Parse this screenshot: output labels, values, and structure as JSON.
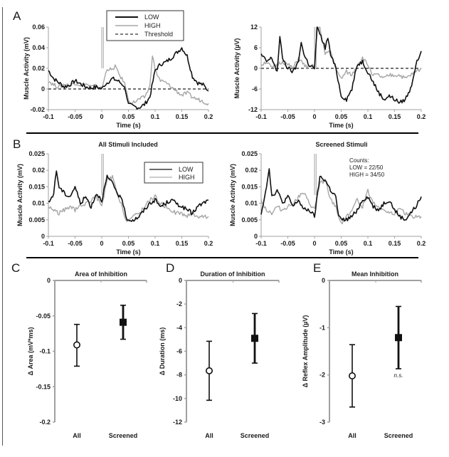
{
  "colors": {
    "low": "#111111",
    "high": "#a6a6a6",
    "axis": "#a0a0a0",
    "frame": "#000000"
  },
  "chart_data": [
    {
      "id": "A-left",
      "panel_letter": "A",
      "type": "line",
      "title": "",
      "xlabel": "Time (s)",
      "ylabel": "Muscle Activity (mV)",
      "xlim": [
        -0.1,
        0.2
      ],
      "ylim": [
        -0.02,
        0.06
      ],
      "xticks": [
        -0.1,
        -0.05,
        0,
        0.05,
        0.1,
        0.15,
        0.2
      ],
      "xtick_labels": [
        "-0.1",
        "-0.05",
        "0",
        "0.05",
        "0.1",
        "0.15",
        "0.2"
      ],
      "yticks": [
        -0.02,
        0,
        0.02,
        0.04,
        0.06
      ],
      "ytick_labels": [
        "-0.02",
        "0",
        "0.02",
        "0.04",
        "0.06"
      ],
      "legend": {
        "position": "top-center",
        "entries": [
          "LOW",
          "HIGH",
          "Threshold"
        ]
      },
      "threshold": 0,
      "series": [
        {
          "name": "LOW",
          "x": [
            -0.1,
            -0.09,
            -0.08,
            -0.07,
            -0.06,
            -0.05,
            -0.04,
            -0.03,
            -0.02,
            -0.01,
            0,
            0.005,
            0.01,
            0.02,
            0.03,
            0.04,
            0.045,
            0.05,
            0.06,
            0.07,
            0.08,
            0.09,
            0.1,
            0.11,
            0.12,
            0.13,
            0.14,
            0.15,
            0.16,
            0.17,
            0.18,
            0.19,
            0.2
          ],
          "y": [
            0.018,
            0.01,
            0.006,
            0.002,
            0.004,
            0.008,
            0.005,
            0.002,
            0.001,
            0.002,
            0.0,
            0.004,
            0.006,
            0.01,
            0.008,
            0.004,
            -0.002,
            -0.015,
            -0.017,
            -0.018,
            -0.015,
            -0.008,
            0.018,
            0.024,
            0.026,
            0.03,
            0.035,
            0.04,
            0.032,
            0.012,
            0.006,
            0.004,
            -0.002
          ]
        },
        {
          "name": "HIGH",
          "x": [
            -0.1,
            -0.09,
            -0.08,
            -0.07,
            -0.06,
            -0.05,
            -0.04,
            -0.03,
            -0.02,
            -0.01,
            0,
            0.005,
            0.01,
            0.02,
            0.025,
            0.03,
            0.04,
            0.045,
            0.05,
            0.06,
            0.07,
            0.08,
            0.09,
            0.095,
            0.1,
            0.11,
            0.12,
            0.13,
            0.14,
            0.15,
            0.16,
            0.17,
            0.18,
            0.19,
            0.2
          ],
          "y": [
            0.008,
            0.004,
            0.002,
            0.005,
            0.003,
            0.006,
            0.004,
            0.005,
            0.002,
            0.003,
            0.0,
            0.01,
            0.02,
            0.018,
            0.023,
            0.016,
            0.008,
            0.002,
            -0.012,
            -0.013,
            -0.01,
            -0.008,
            0.002,
            0.034,
            0.018,
            0.008,
            0.006,
            0.002,
            -0.002,
            -0.006,
            -0.004,
            -0.008,
            -0.01,
            -0.012,
            -0.014
          ]
        }
      ]
    },
    {
      "id": "A-right",
      "panel_letter": "",
      "type": "line",
      "title": "",
      "xlabel": "Time (s)",
      "ylabel": "Muscle Activity (µV)",
      "xlim": [
        -0.1,
        0.2
      ],
      "ylim": [
        -12,
        12
      ],
      "xticks": [
        -0.1,
        -0.05,
        0,
        0.05,
        0.1,
        0.15,
        0.2
      ],
      "xtick_labels": [
        "-0.1",
        "-0.05",
        "0",
        "0.05",
        "0.1",
        "0.15",
        "0.2"
      ],
      "yticks": [
        -12,
        -6,
        0,
        6,
        12
      ],
      "ytick_labels": [
        "-12",
        "-6",
        "0",
        "6",
        "12"
      ],
      "threshold": 0,
      "series": [
        {
          "name": "LOW",
          "x": [
            -0.1,
            -0.09,
            -0.08,
            -0.07,
            -0.065,
            -0.06,
            -0.05,
            -0.04,
            -0.03,
            -0.025,
            -0.02,
            -0.01,
            0,
            0.005,
            0.01,
            0.02,
            0.025,
            0.03,
            0.04,
            0.05,
            0.06,
            0.07,
            0.08,
            0.09,
            0.1,
            0.11,
            0.12,
            0.13,
            0.14,
            0.15,
            0.16,
            0.17,
            0.18,
            0.19,
            0.2
          ],
          "y": [
            4,
            2,
            3,
            -1,
            9,
            3,
            0,
            -1,
            2,
            8,
            4,
            1,
            0,
            12,
            10,
            6,
            9,
            4,
            0,
            -8,
            -9,
            -6,
            1,
            2,
            -1,
            -4,
            -7,
            -9,
            -8,
            -9,
            -10,
            -9,
            -6,
            1,
            5
          ]
        },
        {
          "name": "HIGH",
          "x": [
            -0.1,
            -0.09,
            -0.08,
            -0.07,
            -0.06,
            -0.05,
            -0.04,
            -0.03,
            -0.02,
            -0.01,
            0,
            0.005,
            0.01,
            0.02,
            0.03,
            0.04,
            0.045,
            0.05,
            0.06,
            0.07,
            0.08,
            0.09,
            0.1,
            0.11,
            0.12,
            0.13,
            0.14,
            0.15,
            0.16,
            0.17,
            0.18,
            0.19,
            0.2
          ],
          "y": [
            1,
            2,
            0,
            1,
            2,
            1,
            0,
            3,
            1,
            0,
            1,
            12,
            12,
            4,
            5,
            0,
            -2,
            -3,
            -1,
            -2,
            1,
            3,
            1,
            -2,
            -2,
            -3,
            -2,
            -2,
            -2,
            -3,
            -2,
            -1,
            0
          ]
        }
      ]
    },
    {
      "id": "B-left",
      "panel_letter": "B",
      "type": "line",
      "title": "All Stimuli Included",
      "xlabel": "Time (s)",
      "ylabel": "Muscle Activity (mV)",
      "xlim": [
        -0.1,
        0.2
      ],
      "ylim": [
        0,
        0.025
      ],
      "xticks": [
        -0.1,
        -0.05,
        0,
        0.05,
        0.1,
        0.15,
        0.2
      ],
      "xtick_labels": [
        "-0.1",
        "-0.05",
        "0",
        "0.05",
        "0.1",
        "0.15",
        "0.2"
      ],
      "yticks": [
        0,
        0.005,
        0.01,
        0.015,
        0.02,
        0.025
      ],
      "ytick_labels": [
        "0",
        "0.005",
        "0.01",
        "0.015",
        "0.02",
        "0.025"
      ],
      "legend": {
        "position": "top-right",
        "entries": [
          "LOW",
          "HIGH"
        ]
      },
      "series": [
        {
          "name": "LOW",
          "x": [
            -0.1,
            -0.09,
            -0.085,
            -0.08,
            -0.07,
            -0.06,
            -0.05,
            -0.04,
            -0.03,
            -0.02,
            -0.01,
            0,
            0.01,
            0.02,
            0.03,
            0.04,
            0.045,
            0.05,
            0.06,
            0.07,
            0.08,
            0.09,
            0.1,
            0.11,
            0.12,
            0.13,
            0.14,
            0.15,
            0.16,
            0.17,
            0.18,
            0.19,
            0.2
          ],
          "y": [
            0.01,
            0.013,
            0.02,
            0.015,
            0.013,
            0.012,
            0.015,
            0.01,
            0.012,
            0.009,
            0.013,
            0.011,
            0.018,
            0.016,
            0.013,
            0.01,
            0.006,
            0.005,
            0.005,
            0.006,
            0.008,
            0.01,
            0.011,
            0.009,
            0.01,
            0.011,
            0.01,
            0.009,
            0.008,
            0.007,
            0.009,
            0.01,
            0.011
          ]
        },
        {
          "name": "HIGH",
          "x": [
            -0.1,
            -0.09,
            -0.08,
            -0.07,
            -0.06,
            -0.05,
            -0.04,
            -0.03,
            -0.02,
            -0.01,
            0,
            0.01,
            0.02,
            0.03,
            0.04,
            0.045,
            0.05,
            0.06,
            0.07,
            0.08,
            0.09,
            0.1,
            0.11,
            0.12,
            0.13,
            0.14,
            0.15,
            0.16,
            0.17,
            0.18,
            0.19,
            0.2
          ],
          "y": [
            0.009,
            0.008,
            0.007,
            0.008,
            0.009,
            0.008,
            0.009,
            0.01,
            0.011,
            0.012,
            0.009,
            0.017,
            0.018,
            0.012,
            0.008,
            0.005,
            0.005,
            0.006,
            0.007,
            0.009,
            0.011,
            0.012,
            0.01,
            0.009,
            0.008,
            0.007,
            0.007,
            0.006,
            0.007,
            0.006,
            0.006,
            0.006
          ]
        }
      ]
    },
    {
      "id": "B-right",
      "panel_letter": "",
      "type": "line",
      "title": "Screened Stimuli",
      "xlabel": "Time (s)",
      "ylabel": "Muscle Activity (mV)",
      "xlim": [
        -0.1,
        0.2
      ],
      "ylim": [
        0,
        0.025
      ],
      "xticks": [
        -0.1,
        -0.05,
        0,
        0.05,
        0.1,
        0.15,
        0.2
      ],
      "xtick_labels": [
        "-0.1",
        "-0.05",
        "0",
        "0.05",
        "0.1",
        "0.15",
        "0.2"
      ],
      "yticks": [
        0,
        0.005,
        0.01,
        0.015,
        0.02,
        0.025
      ],
      "ytick_labels": [
        "0",
        "0.005",
        "0.01",
        "0.015",
        "0.02",
        "0.025"
      ],
      "annotation": [
        "Counts:",
        "LOW = 22/50",
        "HIGH = 34/50"
      ],
      "series": [
        {
          "name": "LOW",
          "x": [
            -0.1,
            -0.09,
            -0.085,
            -0.08,
            -0.07,
            -0.06,
            -0.05,
            -0.04,
            -0.03,
            -0.02,
            -0.01,
            0,
            0.01,
            0.02,
            0.03,
            0.04,
            0.045,
            0.05,
            0.06,
            0.07,
            0.08,
            0.09,
            0.1,
            0.11,
            0.12,
            0.13,
            0.14,
            0.15,
            0.16,
            0.17,
            0.18,
            0.19,
            0.2
          ],
          "y": [
            0.007,
            0.015,
            0.021,
            0.012,
            0.014,
            0.01,
            0.012,
            0.009,
            0.011,
            0.008,
            0.008,
            0.006,
            0.018,
            0.017,
            0.014,
            0.012,
            0.006,
            0.005,
            0.005,
            0.006,
            0.008,
            0.011,
            0.012,
            0.009,
            0.008,
            0.01,
            0.011,
            0.008,
            0.006,
            0.005,
            0.007,
            0.009,
            0.012
          ]
        },
        {
          "name": "HIGH",
          "x": [
            -0.1,
            -0.09,
            -0.08,
            -0.07,
            -0.06,
            -0.05,
            -0.04,
            -0.03,
            -0.02,
            -0.01,
            0,
            0.01,
            0.02,
            0.03,
            0.04,
            0.045,
            0.05,
            0.06,
            0.07,
            0.08,
            0.09,
            0.1,
            0.11,
            0.12,
            0.13,
            0.14,
            0.15,
            0.16,
            0.17,
            0.18,
            0.19,
            0.2
          ],
          "y": [
            0.011,
            0.008,
            0.007,
            0.009,
            0.008,
            0.009,
            0.01,
            0.012,
            0.013,
            0.01,
            0.008,
            0.016,
            0.017,
            0.011,
            0.009,
            0.006,
            0.004,
            0.006,
            0.008,
            0.011,
            0.009,
            0.014,
            0.01,
            0.009,
            0.008,
            0.007,
            0.007,
            0.008,
            0.007,
            0.006,
            0.006,
            0.006
          ]
        }
      ]
    },
    {
      "id": "C",
      "panel_letter": "C",
      "type": "scatter",
      "title": "Area of Inhibition",
      "ylabel": "Δ Area (mV*ms)",
      "xlabel": "",
      "ylim": [
        -0.2,
        0
      ],
      "yticks": [
        -0.2,
        -0.15,
        -0.1,
        -0.05,
        0
      ],
      "ytick_labels": [
        "-0.2",
        "-0.15",
        "-0.1",
        "-0.05",
        "0"
      ],
      "categories": [
        "All",
        "Screened"
      ],
      "values": [
        -0.091,
        -0.059
      ],
      "err_low": [
        -0.121,
        -0.083
      ],
      "err_high": [
        -0.062,
        -0.035
      ],
      "annotation": ""
    },
    {
      "id": "D",
      "panel_letter": "D",
      "type": "scatter",
      "title": "Duration of Inhibition",
      "ylabel": "Δ Duration (ms)",
      "xlabel": "",
      "ylim": [
        -12,
        0
      ],
      "yticks": [
        -12,
        -10,
        -8,
        -6,
        -4,
        -2,
        0
      ],
      "ytick_labels": [
        "-12",
        "-10",
        "-8",
        "-6",
        "-4",
        "-2",
        "0"
      ],
      "categories": [
        "All",
        "Screened"
      ],
      "values": [
        -7.65,
        -4.9
      ],
      "err_low": [
        -10.15,
        -7.0
      ],
      "err_high": [
        -5.15,
        -2.8
      ],
      "annotation": ""
    },
    {
      "id": "E",
      "panel_letter": "E",
      "type": "scatter",
      "title": "Mean Inhibition",
      "ylabel": "Δ Reflex Amplitude (µV)",
      "xlabel": "",
      "ylim": [
        -3,
        0
      ],
      "yticks": [
        -3,
        -2,
        -1,
        0
      ],
      "ytick_labels": [
        "-3",
        "-2",
        "-1",
        "0"
      ],
      "categories": [
        "All",
        "Screened"
      ],
      "values": [
        -2.02,
        -1.21
      ],
      "err_low": [
        -2.68,
        -1.87
      ],
      "err_high": [
        -1.36,
        -0.55
      ],
      "annotation": "n.s."
    }
  ]
}
